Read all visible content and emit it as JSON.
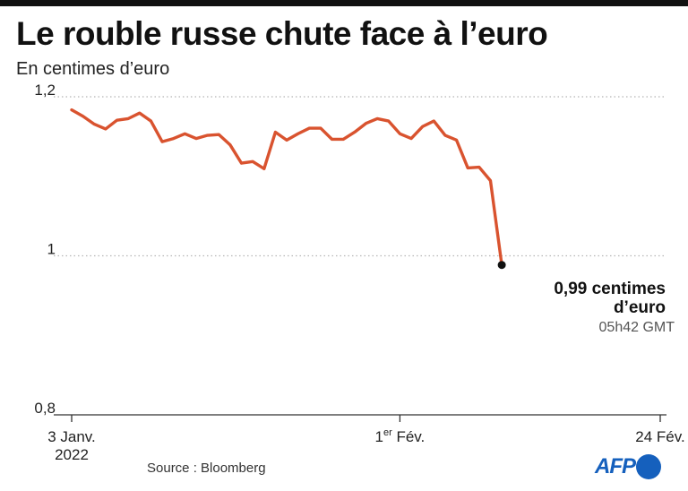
{
  "header": {
    "title": "Le rouble russe chute face à l’euro",
    "subtitle": "En centimes d’euro"
  },
  "footer": {
    "source": "Source : Bloomberg",
    "logo": "AFP"
  },
  "colors": {
    "line": "#d9532f",
    "grid": "#b5b5b5",
    "axis": "#333333",
    "marker": "#111111",
    "logo": "#1560bd"
  },
  "chart_data": {
    "type": "line",
    "title": "Le rouble russe chute face à l’euro",
    "subtitle": "En centimes d’euro",
    "xlabel": "",
    "ylabel": "",
    "xlim": [
      "2022-01-03",
      "2022-02-24"
    ],
    "ylim": [
      0.8,
      1.2
    ],
    "grid": "horizontal dotted",
    "y_ticks": [
      {
        "value": 1.2,
        "label": "1,2"
      },
      {
        "value": 1.0,
        "label": "1"
      },
      {
        "value": 0.8,
        "label": "0,8"
      }
    ],
    "x_ticks": [
      {
        "date": "2022-01-03",
        "lines": [
          "3 Janv.",
          "2022"
        ]
      },
      {
        "date": "2022-02-01",
        "lines": [
          "1",
          "er",
          " Fév."
        ]
      },
      {
        "date": "2022-02-24",
        "lines": [
          "24 Fév."
        ]
      }
    ],
    "series": [
      {
        "points": [
          [
            "2022-01-03",
            1.1835
          ],
          [
            "2022-01-04",
            1.1755
          ],
          [
            "2022-01-05",
            1.1655
          ],
          [
            "2022-01-06",
            1.1595
          ],
          [
            "2022-01-07",
            1.1705
          ],
          [
            "2022-01-08",
            1.1725
          ],
          [
            "2022-01-09",
            1.1795
          ],
          [
            "2022-01-10",
            1.1695
          ],
          [
            "2022-01-11",
            1.1435
          ],
          [
            "2022-01-12",
            1.1475
          ],
          [
            "2022-01-13",
            1.1535
          ],
          [
            "2022-01-14",
            1.1475
          ],
          [
            "2022-01-15",
            1.1515
          ],
          [
            "2022-01-16",
            1.1525
          ],
          [
            "2022-01-17",
            1.1395
          ],
          [
            "2022-01-18",
            1.1165
          ],
          [
            "2022-01-19",
            1.1185
          ],
          [
            "2022-01-20",
            1.1095
          ],
          [
            "2022-01-21",
            1.1555
          ],
          [
            "2022-01-22",
            1.1455
          ],
          [
            "2022-01-23",
            1.1535
          ],
          [
            "2022-01-24",
            1.1605
          ],
          [
            "2022-01-25",
            1.1605
          ],
          [
            "2022-01-26",
            1.1465
          ],
          [
            "2022-01-27",
            1.1465
          ],
          [
            "2022-01-28",
            1.1555
          ],
          [
            "2022-01-29",
            1.1665
          ],
          [
            "2022-01-30",
            1.1725
          ],
          [
            "2022-01-31",
            1.1695
          ],
          [
            "2022-02-01",
            1.1535
          ],
          [
            "2022-02-02",
            1.1475
          ],
          [
            "2022-02-03",
            1.1625
          ],
          [
            "2022-02-04",
            1.1695
          ],
          [
            "2022-02-05",
            1.1515
          ],
          [
            "2022-02-06",
            1.1455
          ],
          [
            "2022-02-07",
            1.1105
          ],
          [
            "2022-02-08",
            1.1115
          ],
          [
            "2022-02-09",
            1.0945
          ],
          [
            "2022-02-10",
            0.9885
          ]
        ]
      }
    ],
    "highlight": {
      "point": [
        "2022-02-10",
        0.9885
      ],
      "label_lines": [
        "0,99 centimes",
        "d’euro"
      ],
      "time": "05h42 GMT"
    }
  }
}
